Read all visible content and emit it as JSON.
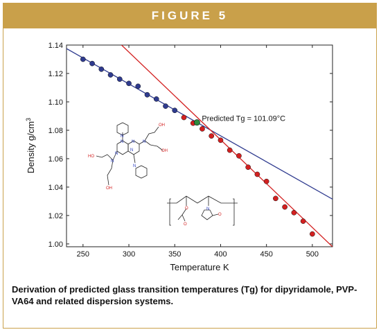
{
  "figure_label": "FIGURE 5",
  "caption": "Derivation of predicted glass transition temperatures (Tg) for dipyridamole, PVP-VA64 and related dispersion systems.",
  "colors": {
    "accent": "#c9a04a",
    "glassy_series": "#2f3b8f",
    "melt_series": "#d32020",
    "tg_point": "#2e8b3e"
  },
  "chart_data": {
    "type": "scatter",
    "xlabel": "Temperature K",
    "ylabel_main": "Density g/cm",
    "ylabel_sup": "3",
    "xlim": [
      232,
      522
    ],
    "ylim": [
      0.998,
      1.14
    ],
    "xticks": [
      250,
      300,
      350,
      400,
      450,
      500
    ],
    "yticks": [
      1.0,
      1.02,
      1.04,
      1.06,
      1.08,
      1.1,
      1.12,
      1.14
    ],
    "xtick_labels": [
      "250",
      "300",
      "350",
      "400",
      "450",
      "500"
    ],
    "ytick_labels": [
      "1.00",
      "1.02",
      "1.04",
      "1.06",
      "1.08",
      "1.10",
      "1.12",
      "1.14"
    ],
    "series": [
      {
        "color": "#2f3b8f",
        "x": [
          250,
          260,
          270,
          280,
          290,
          300,
          310,
          320,
          330,
          340,
          350
        ],
        "y": [
          1.13,
          1.127,
          1.123,
          1.119,
          1.116,
          1.113,
          1.111,
          1.105,
          1.102,
          1.097,
          1.094
        ]
      },
      {
        "color": "#d32020",
        "x": [
          360,
          370,
          380,
          390,
          400,
          410,
          420,
          430,
          440,
          450,
          460,
          470,
          480,
          490,
          500
        ],
        "y": [
          1.089,
          1.085,
          1.081,
          1.076,
          1.073,
          1.066,
          1.062,
          1.054,
          1.049,
          1.044,
          1.032,
          1.026,
          1.022,
          1.016,
          1.007
        ]
      }
    ],
    "fit_lines": [
      {
        "color": "#2f3b8f",
        "x": [
          232,
          522
        ],
        "y": [
          1.1375,
          1.0315
        ]
      },
      {
        "color": "#d32020",
        "x": [
          292,
          522
        ],
        "y": [
          1.14,
          0.998
        ]
      }
    ],
    "tg_point": {
      "x": 374.24,
      "y": 1.0855,
      "label": "Predicted Tg = 101.09°C"
    }
  },
  "molecules": {
    "dipyridamole_labels": [
      "N",
      "N",
      "N",
      "N",
      "N",
      "N",
      "N",
      "N",
      "OH",
      "OH",
      "HO",
      "OH"
    ],
    "pvpva_labels": [
      "O",
      "O",
      "N",
      "O"
    ]
  }
}
